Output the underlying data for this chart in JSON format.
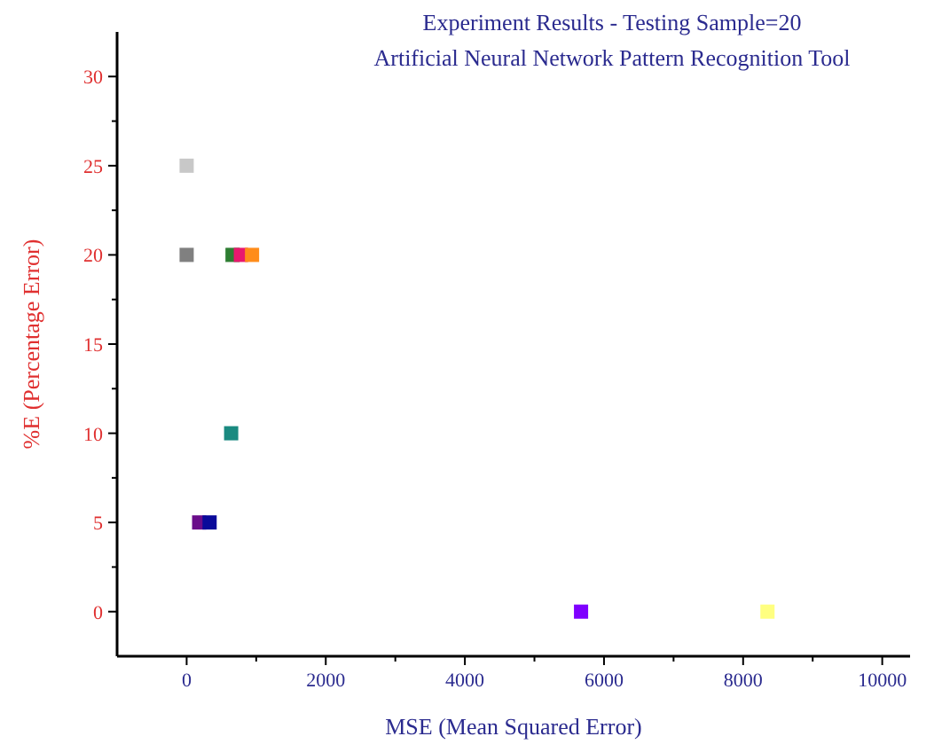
{
  "chart_data": {
    "type": "scatter",
    "title": "Experiment Results - Testing Sample=20",
    "subtitle": "Artificial Neural Network Pattern Recognition Tool",
    "xlabel": "MSE (Mean Squared Error)",
    "ylabel": "%E (Percentage Error)",
    "x": [
      0,
      0,
      660,
      780,
      940,
      640,
      180,
      330,
      5670,
      8350
    ],
    "values": [
      25,
      20,
      20,
      20,
      20,
      10,
      5,
      5,
      0,
      0
    ],
    "colors": [
      "#c8c8c8",
      "#808080",
      "#2e7d32",
      "#e8186e",
      "#ff8c1a",
      "#1a8a80",
      "#6a0d8a",
      "#0a0a9a",
      "#7f00ff",
      "#ffff80"
    ],
    "marker": "square",
    "grid": false,
    "xlim": [
      -1000,
      10400
    ],
    "ylim": [
      -2.5,
      32.5
    ],
    "xticks": [
      0,
      {
        "value": 1000,
        "label": null
      },
      2000,
      {
        "value": 3000,
        "label": null
      },
      4000,
      {
        "value": 5000,
        "label": null
      },
      6000,
      {
        "value": 7000,
        "label": null
      },
      8000,
      {
        "value": 9000,
        "label": null
      },
      10000
    ],
    "yticks": [
      0,
      {
        "value": 2.5,
        "label": null
      },
      5,
      {
        "value": 7.5,
        "label": null
      },
      10,
      {
        "value": 12.5,
        "label": null
      },
      15,
      {
        "value": 17.5,
        "label": null
      },
      20,
      {
        "value": 22.5,
        "label": null
      },
      25,
      {
        "value": 27.5,
        "label": null
      },
      30
    ]
  }
}
